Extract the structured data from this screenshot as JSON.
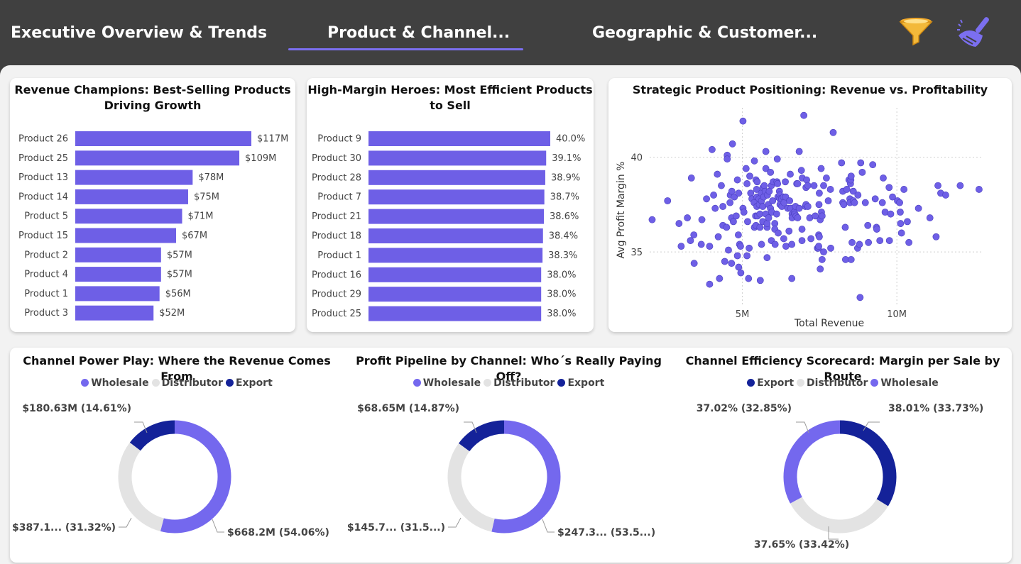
{
  "tabs": [
    {
      "label": "Executive Overview & Trends"
    },
    {
      "label": "Product & Channel..."
    },
    {
      "label": "Geographic & Customer..."
    }
  ],
  "active_tab": 1,
  "icons": {
    "filter": "filter-funnel-icon",
    "clear": "broom-clear-icon"
  },
  "colors": {
    "accent": "#7b6ff0",
    "bar": "#6e5fe6",
    "wholesale": "#7468ee",
    "distributor": "#e3e3e3",
    "export": "#142299",
    "header_bg": "#404040",
    "canvas_bg": "#f2f2f2"
  },
  "chart_data": [
    {
      "type": "bar",
      "orientation": "horizontal",
      "title": "Revenue Champions: Best-Selling Products Driving Growth",
      "categories": [
        "Product 26",
        "Product 25",
        "Product 13",
        "Product 14",
        "Product 5",
        "Product 15",
        "Product 2",
        "Product 4",
        "Product 1",
        "Product 3"
      ],
      "values": [
        117,
        109,
        78,
        75,
        71,
        67,
        57,
        57,
        56,
        52
      ],
      "value_labels": [
        "$117M",
        "$109M",
        "$78M",
        "$75M",
        "$71M",
        "$67M",
        "$57M",
        "$57M",
        "$56M",
        "$52M"
      ],
      "unit": "$M",
      "xlim": [
        0,
        117
      ]
    },
    {
      "type": "bar",
      "orientation": "horizontal",
      "title": "High-Margin Heroes: Most Efficient Products to Sell",
      "categories": [
        "Product 9",
        "Product 30",
        "Product 28",
        "Product 7",
        "Product 21",
        "Product 18",
        "Product 1",
        "Product 16",
        "Product 29",
        "Product 25"
      ],
      "values": [
        40.0,
        39.1,
        38.9,
        38.7,
        38.6,
        38.4,
        38.3,
        38.0,
        38.0,
        38.0
      ],
      "value_labels": [
        "40.0%",
        "39.1%",
        "38.9%",
        "38.7%",
        "38.6%",
        "38.4%",
        "38.3%",
        "38.0%",
        "38.0%",
        "38.0%"
      ],
      "unit": "%",
      "xlim": [
        0,
        40
      ]
    },
    {
      "type": "scatter",
      "title": "Strategic Product Positioning: Revenue vs. Profitability",
      "xlabel": "Total Revenue",
      "ylabel": "Avg Profit Margin %",
      "xlim": [
        2000000,
        12800000
      ],
      "ylim": [
        32.2,
        42.6
      ],
      "xticks": [
        {
          "value": 5000000,
          "label": "5M"
        },
        {
          "value": 10000000,
          "label": "10M"
        }
      ],
      "yticks": [
        {
          "value": 35,
          "label": "35"
        },
        {
          "value": 40,
          "label": "40"
        }
      ],
      "grid": true,
      "points": [
        [
          2.08,
          36.7
        ],
        [
          2.58,
          37.7
        ],
        [
          2.95,
          36.5
        ],
        [
          3.02,
          35.3
        ],
        [
          3.22,
          36.8
        ],
        [
          3.32,
          35.6
        ],
        [
          3.43,
          35.9
        ],
        [
          3.35,
          38.9
        ],
        [
          3.44,
          34.4
        ],
        [
          3.67,
          35.4
        ],
        [
          3.69,
          36.7
        ],
        [
          3.84,
          37.8
        ],
        [
          3.94,
          35.3
        ],
        [
          3.94,
          33.3
        ],
        [
          4.02,
          40.4
        ],
        [
          4.07,
          38.0
        ],
        [
          4.12,
          37.3
        ],
        [
          4.19,
          39.1
        ],
        [
          4.22,
          35.8
        ],
        [
          4.26,
          33.6
        ],
        [
          4.32,
          38.5
        ],
        [
          4.37,
          37.4
        ],
        [
          4.37,
          36.4
        ],
        [
          4.43,
          34.5
        ],
        [
          4.49,
          36.3
        ],
        [
          4.51,
          40.1
        ],
        [
          4.51,
          39.9
        ],
        [
          4.55,
          35.1
        ],
        [
          4.6,
          37.6
        ],
        [
          4.61,
          38.0
        ],
        [
          4.65,
          36.8
        ],
        [
          4.65,
          34.4
        ],
        [
          4.66,
          38.2
        ],
        [
          4.68,
          40.7
        ],
        [
          4.71,
          36.6
        ],
        [
          4.74,
          37.9
        ],
        [
          4.8,
          36.9
        ],
        [
          4.84,
          38.8
        ],
        [
          4.84,
          34.8
        ],
        [
          4.87,
          35.9
        ],
        [
          4.88,
          34.2
        ],
        [
          4.88,
          38.1
        ],
        [
          4.91,
          35.4
        ],
        [
          4.94,
          35.3
        ],
        [
          4.95,
          33.9
        ],
        [
          5.02,
          41.9
        ],
        [
          5.02,
          37.3
        ],
        [
          5.05,
          37.1
        ],
        [
          5.12,
          39.4
        ],
        [
          5.15,
          38.6
        ],
        [
          5.15,
          34.8
        ],
        [
          5.17,
          36.6
        ],
        [
          5.2,
          33.6
        ],
        [
          5.22,
          35.2
        ],
        [
          5.24,
          39.0
        ],
        [
          5.27,
          38.1
        ],
        [
          5.31,
          37.8
        ],
        [
          5.38,
          37.6
        ],
        [
          5.39,
          36.3
        ],
        [
          5.39,
          39.8
        ],
        [
          5.43,
          36.9
        ],
        [
          5.44,
          36.4
        ],
        [
          5.44,
          38.8
        ],
        [
          5.46,
          38.3
        ],
        [
          5.47,
          37.4
        ],
        [
          5.47,
          37.9
        ],
        [
          5.48,
          38.7
        ],
        [
          5.49,
          36.9
        ],
        [
          5.54,
          37.8
        ],
        [
          5.55,
          37.5
        ],
        [
          5.57,
          36.3
        ],
        [
          5.57,
          37.0
        ],
        [
          5.58,
          33.5
        ],
        [
          5.61,
          38.1
        ],
        [
          5.62,
          35.4
        ],
        [
          5.62,
          37.7
        ],
        [
          5.66,
          37.4
        ],
        [
          5.66,
          36.6
        ],
        [
          5.67,
          38.4
        ],
        [
          5.69,
          37.9
        ],
        [
          5.71,
          38.5
        ],
        [
          5.74,
          38.2
        ],
        [
          5.76,
          39.4
        ],
        [
          5.76,
          37.0
        ],
        [
          5.76,
          40.3
        ],
        [
          5.8,
          34.7
        ],
        [
          5.8,
          36.3
        ],
        [
          5.8,
          36.5
        ],
        [
          5.81,
          38.0
        ],
        [
          5.84,
          37.5
        ],
        [
          5.85,
          36.8
        ],
        [
          5.87,
          38.2
        ],
        [
          5.91,
          39.2
        ],
        [
          5.91,
          37.3
        ],
        [
          5.94,
          35.6
        ],
        [
          5.94,
          38.5
        ],
        [
          5.95,
          37.1
        ],
        [
          5.98,
          37.7
        ],
        [
          6.0,
          38.7
        ],
        [
          6.05,
          36.5
        ],
        [
          6.05,
          36.2
        ],
        [
          6.06,
          35.4
        ],
        [
          6.11,
          37.0
        ],
        [
          6.12,
          38.7
        ],
        [
          6.13,
          39.9
        ],
        [
          6.14,
          38.6
        ],
        [
          6.15,
          37.9
        ],
        [
          6.16,
          36.0
        ],
        [
          6.2,
          38.2
        ],
        [
          6.21,
          38.0
        ],
        [
          6.21,
          37.8
        ],
        [
          6.22,
          37.5
        ],
        [
          6.27,
          37.8
        ],
        [
          6.28,
          37.4
        ],
        [
          6.33,
          37.9
        ],
        [
          6.34,
          35.7
        ],
        [
          6.35,
          37.6
        ],
        [
          6.39,
          38.7
        ],
        [
          6.4,
          37.9
        ],
        [
          6.41,
          35.3
        ],
        [
          6.47,
          37.3
        ],
        [
          6.51,
          36.1
        ],
        [
          6.53,
          37.7
        ],
        [
          6.55,
          39.1
        ],
        [
          6.57,
          37.3
        ],
        [
          6.6,
          35.4
        ],
        [
          6.6,
          33.6
        ],
        [
          6.61,
          37.0
        ],
        [
          6.61,
          36.8
        ],
        [
          6.68,
          37.1
        ],
        [
          6.7,
          37.0
        ],
        [
          6.72,
          37.4
        ],
        [
          6.74,
          36.9
        ],
        [
          6.76,
          38.6
        ],
        [
          6.79,
          36.8
        ],
        [
          6.79,
          38.6
        ],
        [
          6.84,
          37.3
        ],
        [
          6.84,
          40.3
        ],
        [
          6.91,
          39.3
        ],
        [
          6.93,
          36.2
        ],
        [
          6.93,
          35.6
        ],
        [
          6.94,
          38.9
        ],
        [
          6.99,
          42.2
        ],
        [
          7.04,
          37.4
        ],
        [
          7.06,
          38.4
        ],
        [
          7.06,
          37.5
        ],
        [
          7.08,
          38.8
        ],
        [
          7.12,
          38.5
        ],
        [
          7.12,
          37.4
        ],
        [
          7.18,
          36.8
        ],
        [
          7.22,
          35.7
        ],
        [
          7.32,
          38.5
        ],
        [
          7.36,
          36.9
        ],
        [
          7.43,
          35.2
        ],
        [
          7.46,
          35.2
        ],
        [
          7.47,
          35.3
        ],
        [
          7.47,
          35.9
        ],
        [
          7.48,
          37.5
        ],
        [
          7.49,
          38.1
        ],
        [
          7.49,
          35.8
        ],
        [
          7.52,
          36.7
        ],
        [
          7.52,
          34.1
        ],
        [
          7.55,
          39.4
        ],
        [
          7.56,
          37.1
        ],
        [
          7.58,
          34.6
        ],
        [
          7.58,
          36.9
        ],
        [
          7.63,
          35.0
        ],
        [
          7.63,
          38.5
        ],
        [
          7.72,
          38.9
        ],
        [
          7.78,
          37.7
        ],
        [
          7.85,
          38.3
        ],
        [
          7.86,
          35.2
        ],
        [
          7.94,
          41.3
        ],
        [
          8.21,
          39.7
        ],
        [
          8.25,
          37.6
        ],
        [
          8.25,
          38.2
        ],
        [
          8.28,
          37.5
        ],
        [
          8.33,
          36.3
        ],
        [
          8.34,
          34.6
        ],
        [
          8.38,
          38.3
        ],
        [
          8.45,
          38.8
        ],
        [
          8.48,
          37.8
        ],
        [
          8.48,
          37.6
        ],
        [
          8.5,
          38.6
        ],
        [
          8.51,
          38.8
        ],
        [
          8.52,
          34.6
        ],
        [
          8.52,
          39.0
        ],
        [
          8.55,
          35.5
        ],
        [
          8.59,
          38.2
        ],
        [
          8.59,
          37.7
        ],
        [
          8.63,
          37.6
        ],
        [
          8.73,
          35.2
        ],
        [
          8.74,
          38.0
        ],
        [
          8.79,
          35.4
        ],
        [
          8.81,
          32.6
        ],
        [
          8.83,
          39.7
        ],
        [
          8.88,
          39.2
        ],
        [
          8.98,
          37.6
        ],
        [
          9.06,
          36.4
        ],
        [
          9.08,
          35.5
        ],
        [
          9.22,
          39.6
        ],
        [
          9.3,
          37.8
        ],
        [
          9.34,
          36.3
        ],
        [
          9.35,
          36.2
        ],
        [
          9.45,
          35.6
        ],
        [
          9.53,
          37.6
        ],
        [
          9.56,
          38.9
        ],
        [
          9.62,
          37.1
        ],
        [
          9.75,
          38.4
        ],
        [
          9.76,
          35.6
        ],
        [
          9.8,
          37.0
        ],
        [
          9.86,
          37.9
        ],
        [
          10.02,
          37.7
        ],
        [
          10.09,
          37.6
        ],
        [
          10.11,
          37.1
        ],
        [
          10.12,
          36.5
        ],
        [
          10.15,
          36.0
        ],
        [
          10.23,
          38.3
        ],
        [
          10.34,
          36.6
        ],
        [
          10.39,
          35.5
        ],
        [
          10.7,
          37.3
        ],
        [
          11.07,
          36.8
        ],
        [
          11.27,
          35.8
        ],
        [
          11.33,
          38.5
        ],
        [
          11.42,
          38.1
        ],
        [
          11.58,
          38.0
        ],
        [
          12.05,
          38.5
        ],
        [
          12.66,
          38.3
        ],
        [
          13.07,
          37.8
        ]
      ]
    },
    {
      "type": "pie",
      "title": "Channel Power Play: Where the Revenue Comes From",
      "legend": [
        "Wholesale",
        "Distributor",
        "Export"
      ],
      "legend_position": "top-center",
      "slices": [
        {
          "name": "Wholesale",
          "value": 54.06,
          "label": "$668.2M (54.06%)"
        },
        {
          "name": "Distributor",
          "value": 31.32,
          "label": "$387.1... (31.32%)"
        },
        {
          "name": "Export",
          "value": 14.61,
          "label": "$180.63M (14.61%)"
        }
      ]
    },
    {
      "type": "pie",
      "title": "Profit Pipeline by Channel: Who´s Really Paying Off?",
      "legend": [
        "Wholesale",
        "Distributor",
        "Export"
      ],
      "legend_position": "top-center",
      "slices": [
        {
          "name": "Wholesale",
          "value": 53.5,
          "label": "$247.3... (53.5...)"
        },
        {
          "name": "Distributor",
          "value": 31.5,
          "label": "$145.7... (31.5...)"
        },
        {
          "name": "Export",
          "value": 14.87,
          "label": "$68.65M (14.87%)"
        }
      ]
    },
    {
      "type": "pie",
      "title": "Channel Efficiency Scorecard: Margin per Sale by Route",
      "legend": [
        "Export",
        "Distributor",
        "Wholesale"
      ],
      "legend_position": "top-center",
      "slices": [
        {
          "name": "Export",
          "value": 33.73,
          "label": "38.01% (33.73%)"
        },
        {
          "name": "Distributor",
          "value": 33.42,
          "label": "37.65% (33.42%)"
        },
        {
          "name": "Wholesale",
          "value": 32.85,
          "label": "37.02% (32.85%)"
        }
      ]
    }
  ]
}
